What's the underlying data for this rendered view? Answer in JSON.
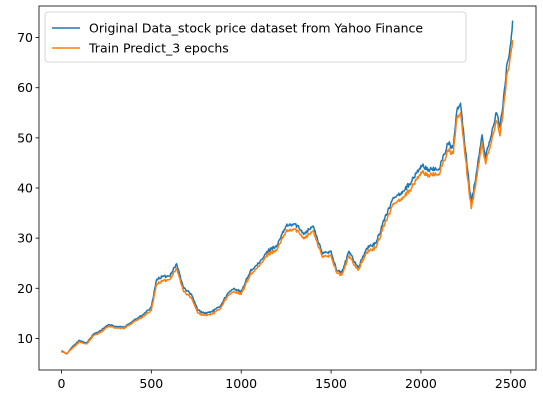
{
  "chart_data": {
    "type": "line",
    "title": "",
    "xlabel": "",
    "ylabel": "",
    "xlim": [
      -125,
      2640
    ],
    "ylim": [
      3.7,
      76.3
    ],
    "x_ticks": [
      0,
      500,
      1000,
      1500,
      2000,
      2500
    ],
    "y_ticks": [
      10,
      20,
      30,
      40,
      50,
      60,
      70
    ],
    "grid": false,
    "legend_position": "upper-left",
    "series": [
      {
        "name": "Original Data_stock price dataset from Yahoo Finance",
        "color": "#1f77b4",
        "x": [
          0,
          30,
          60,
          100,
          140,
          180,
          220,
          260,
          300,
          350,
          400,
          450,
          500,
          530,
          560,
          600,
          640,
          680,
          720,
          760,
          800,
          840,
          880,
          920,
          960,
          1000,
          1050,
          1100,
          1150,
          1200,
          1250,
          1300,
          1350,
          1400,
          1450,
          1500,
          1530,
          1560,
          1600,
          1650,
          1700,
          1750,
          1800,
          1850,
          1900,
          1950,
          2000,
          2050,
          2100,
          2150,
          2180,
          2200,
          2220,
          2240,
          2260,
          2280,
          2300,
          2320,
          2340,
          2360,
          2380,
          2400,
          2420,
          2440,
          2460,
          2480,
          2500,
          2510
        ],
        "y": [
          7.6,
          6.9,
          8.3,
          9.6,
          9.1,
          10.9,
          11.6,
          12.7,
          12.4,
          12.2,
          13.6,
          14.6,
          16.2,
          21.8,
          22.3,
          22.4,
          24.9,
          20.0,
          18.9,
          15.6,
          15.0,
          15.4,
          16.3,
          18.7,
          20.0,
          19.2,
          23.4,
          25.0,
          27.5,
          28.6,
          32.4,
          32.8,
          31.0,
          32.4,
          27.0,
          27.4,
          23.6,
          23.1,
          27.4,
          24.1,
          28.0,
          29.0,
          34.2,
          38.0,
          39.4,
          41.4,
          44.5,
          43.6,
          43.8,
          48.9,
          48.0,
          55.5,
          56.9,
          50.0,
          43.5,
          37.0,
          41.0,
          46.0,
          50.6,
          46.0,
          49.2,
          52.1,
          55.0,
          52.0,
          58.3,
          65.0,
          69.0,
          73.4
        ]
      },
      {
        "name": "Train Predict_3 epochs",
        "color": "#ff7f0e",
        "x": [
          0,
          30,
          60,
          100,
          140,
          180,
          220,
          260,
          300,
          350,
          400,
          450,
          500,
          530,
          560,
          600,
          640,
          680,
          720,
          760,
          800,
          840,
          880,
          920,
          960,
          1000,
          1050,
          1100,
          1150,
          1200,
          1250,
          1300,
          1350,
          1400,
          1450,
          1500,
          1530,
          1560,
          1600,
          1650,
          1700,
          1750,
          1800,
          1850,
          1900,
          1950,
          2000,
          2050,
          2100,
          2150,
          2180,
          2200,
          2220,
          2240,
          2260,
          2280,
          2300,
          2320,
          2340,
          2360,
          2380,
          2400,
          2420,
          2440,
          2460,
          2480,
          2500,
          2510
        ],
        "y": [
          7.4,
          7.0,
          8.0,
          9.3,
          8.9,
          10.6,
          11.3,
          12.4,
          12.1,
          12.0,
          13.3,
          14.2,
          15.6,
          20.9,
          21.4,
          21.7,
          24.0,
          19.3,
          18.2,
          15.0,
          14.6,
          14.9,
          15.8,
          18.2,
          19.4,
          18.8,
          22.7,
          24.4,
          26.8,
          27.8,
          31.3,
          31.8,
          30.1,
          31.4,
          26.3,
          26.6,
          23.1,
          22.6,
          26.5,
          23.6,
          27.2,
          28.1,
          33.1,
          36.8,
          38.2,
          40.1,
          43.2,
          42.5,
          42.8,
          47.5,
          46.9,
          53.9,
          55.0,
          48.5,
          41.8,
          35.9,
          39.8,
          44.7,
          49.1,
          44.8,
          47.8,
          50.6,
          53.4,
          50.4,
          56.5,
          63.0,
          66.8,
          69.5
        ]
      }
    ]
  }
}
